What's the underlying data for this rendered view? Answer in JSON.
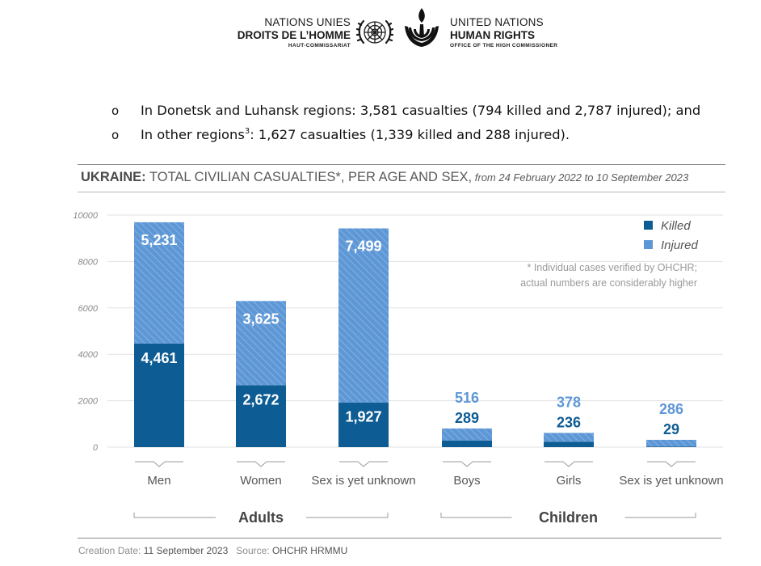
{
  "header": {
    "fr_line1": "NATIONS UNIES",
    "fr_line2": "DROITS DE L’HOMME",
    "fr_line3": "HAUT-COMMISSARIAT",
    "en_line1": "UNITED NATIONS",
    "en_line2": "HUMAN RIGHTS",
    "en_line3": "OFFICE OF THE HIGH COMMISSIONER"
  },
  "bullets": [
    {
      "marker": "o",
      "text": "In Donetsk and Luhansk regions: 3,581 casualties (794 killed and 2,787 injured); and"
    },
    {
      "marker": "o",
      "text_a": "In other regions",
      "sup": "3",
      "text_b": ": 1,627 casualties (1,339 killed and 288 injured)."
    }
  ],
  "chart_title": {
    "bold": "UKRAINE:",
    "main": " TOTAL CIVILIAN CASUALTIES*, PER AGE AND SEX,",
    "date": " from 24 February 2022 to 10 September 2023"
  },
  "footer": {
    "creation_label": "Creation Date:",
    "creation_value": "11 September 2023",
    "source_label": "Source:",
    "source_value": "OHCHR HRMMU"
  },
  "chart_data": {
    "type": "bar",
    "stacked": true,
    "categories": [
      "Men",
      "Women",
      "Sex is yet unknown",
      "Boys",
      "Girls",
      "Sex is yet unknown"
    ],
    "groups": [
      {
        "label": "Adults",
        "categories": [
          0,
          1,
          2
        ]
      },
      {
        "label": "Children",
        "categories": [
          3,
          4,
          5
        ]
      }
    ],
    "series": [
      {
        "name": "Killed",
        "values": [
          4461,
          2672,
          1927,
          289,
          236,
          29
        ],
        "labels": [
          "4,461",
          "2,672",
          "1,927",
          "289",
          "236",
          "29"
        ],
        "color": "#0e5c94"
      },
      {
        "name": "Injured",
        "values": [
          5231,
          3625,
          7499,
          516,
          378,
          286
        ],
        "labels": [
          "5,231",
          "3,625",
          "7,499",
          "516",
          "378",
          "286"
        ],
        "color": "#5e97d6"
      }
    ],
    "ylim": [
      0,
      10000
    ],
    "yticks": [
      0,
      2000,
      4000,
      6000,
      8000,
      10000
    ],
    "grid": true,
    "legend": "top-right",
    "annotation_line1": "* Individual cases verified by OHCHR;",
    "annotation_line2": "actual numbers are considerably higher"
  }
}
